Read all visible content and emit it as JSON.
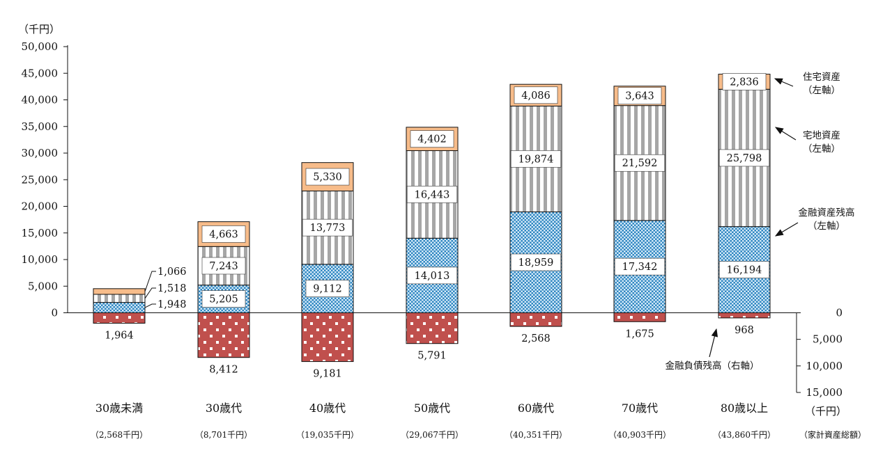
{
  "chart_data": {
    "type": "bar",
    "left_axis_unit": "（千円）",
    "right_axis_unit": "（千円）",
    "left_ticks": [
      "50,000",
      "45,000",
      "40,000",
      "35,000",
      "30,000",
      "25,000",
      "20,000",
      "15,000",
      "10,000",
      "5,000",
      "0"
    ],
    "right_ticks": [
      "0",
      "5,000",
      "10,000",
      "15,000"
    ],
    "ylim_left": [
      0,
      50000
    ],
    "ylim_right": [
      0,
      15000
    ],
    "categories": [
      "30歳未満",
      "30歳代",
      "40歳代",
      "50歳代",
      "60歳代",
      "70歳代",
      "80歳以上"
    ],
    "totals": [
      "（2,568千円）",
      "（8,701千円）",
      "（19,035千円）",
      "（29,067千円）",
      "（40,351千円）",
      "（40,903千円）",
      "（43,860千円）"
    ],
    "totals_label": "（家計資産総額）",
    "series": [
      {
        "name": "金融資産残高（左軸）",
        "axis": "left",
        "color": "#2e86c1",
        "values": [
          1948,
          5205,
          9112,
          14013,
          18959,
          17342,
          16194
        ]
      },
      {
        "name": "宅地資産（左軸）",
        "axis": "left",
        "color": "#a6a6a6",
        "values": [
          1518,
          7243,
          13773,
          16443,
          19874,
          21592,
          25798
        ]
      },
      {
        "name": "住宅資産（左軸）",
        "axis": "left",
        "color": "#f7bc8a",
        "values": [
          1066,
          4663,
          5330,
          4402,
          4086,
          3643,
          2836
        ]
      },
      {
        "name": "金融負債残高（右軸）",
        "axis": "right",
        "color": "#c0504d",
        "values": [
          1964,
          8412,
          9181,
          5791,
          2568,
          1675,
          968
        ]
      }
    ],
    "labels": {
      "financial": [
        "1,948",
        "5,205",
        "9,112",
        "14,013",
        "18,959",
        "17,342",
        "16,194"
      ],
      "land": [
        "1,518",
        "7,243",
        "13,773",
        "16,443",
        "19,874",
        "21,592",
        "25,798"
      ],
      "housing": [
        "1,066",
        "4,663",
        "5,330",
        "4,402",
        "4,086",
        "3,643",
        "2,836"
      ],
      "debt": [
        "1,964",
        "8,412",
        "9,181",
        "5,791",
        "2,568",
        "1,675",
        "968"
      ]
    },
    "annotations": [
      {
        "lines": [
          "住宅資産",
          "（左軸）"
        ]
      },
      {
        "lines": [
          "宅地資産",
          "（左軸）"
        ]
      },
      {
        "lines": [
          "金融資産残高",
          "（左軸）"
        ]
      },
      {
        "lines": [
          "金融負債残高（右軸）"
        ]
      }
    ]
  }
}
